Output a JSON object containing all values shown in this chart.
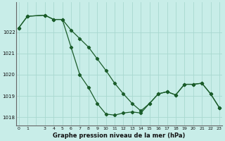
{
  "title": "Graphe pression niveau de la mer (hPa)",
  "bg_color": "#c8ede8",
  "grid_color": "#a8d8d0",
  "line_color": "#1a5c2a",
  "marker_color": "#1a5c2a",
  "series1": {
    "x": [
      0,
      1,
      3,
      4,
      5,
      6,
      7,
      8,
      9,
      10,
      11,
      12,
      13,
      14,
      15,
      16,
      17,
      18,
      19,
      20,
      21,
      22,
      23
    ],
    "y": [
      1022.2,
      1022.75,
      1022.8,
      1022.6,
      1022.6,
      1021.3,
      1020.0,
      1019.4,
      1018.65,
      1018.15,
      1018.1,
      1018.2,
      1018.25,
      1018.2,
      1018.65,
      1019.1,
      1019.2,
      1019.05,
      1019.55,
      1019.55,
      1019.6,
      1019.1,
      1018.45
    ]
  },
  "series2": {
    "x": [
      0,
      1,
      3,
      4,
      5,
      6,
      7,
      8,
      9,
      10,
      11,
      12,
      13,
      14,
      15,
      16,
      17,
      18,
      19,
      20,
      21,
      22,
      23
    ],
    "y": [
      1022.2,
      1022.75,
      1022.8,
      1022.6,
      1022.6,
      1022.1,
      1021.7,
      1021.3,
      1020.75,
      1020.2,
      1019.6,
      1019.1,
      1018.65,
      1018.3,
      1018.65,
      1019.1,
      1019.2,
      1019.05,
      1019.55,
      1019.55,
      1019.6,
      1019.1,
      1018.45
    ]
  },
  "ylim": [
    1017.6,
    1023.4
  ],
  "yticks": [
    1018,
    1019,
    1020,
    1021,
    1022
  ],
  "xtick_labels": [
    "0",
    "1",
    "3",
    "4",
    "5",
    "6",
    "7",
    "8",
    "9",
    "10",
    "11",
    "12",
    "13",
    "14",
    "15",
    "16",
    "17",
    "18",
    "19",
    "20",
    "21",
    "22",
    "23"
  ],
  "xtick_positions": [
    0,
    1,
    3,
    4,
    5,
    6,
    7,
    8,
    9,
    10,
    11,
    12,
    13,
    14,
    15,
    16,
    17,
    18,
    19,
    20,
    21,
    22,
    23
  ],
  "xlim": [
    -0.3,
    23.3
  ],
  "grid_x_all": [
    0,
    1,
    2,
    3,
    4,
    5,
    6,
    7,
    8,
    9,
    10,
    11,
    12,
    13,
    14,
    15,
    16,
    17,
    18,
    19,
    20,
    21,
    22,
    23
  ]
}
